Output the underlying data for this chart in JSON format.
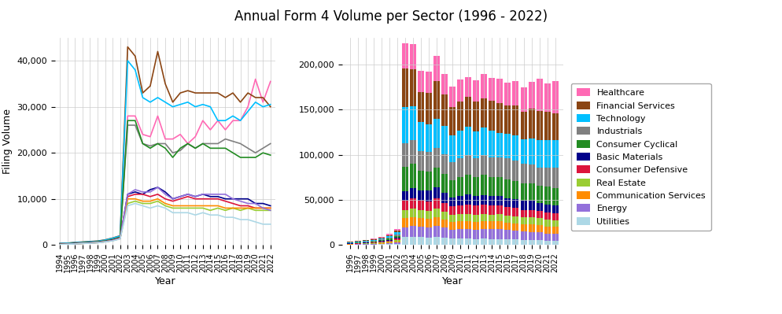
{
  "title": "Annual Form 4 Volume per Sector (1996 - 2022)",
  "sectors_bottom_to_top": [
    "Utilities",
    "Energy",
    "Communication Services",
    "Real Estate",
    "Consumer Defensive",
    "Basic Materials",
    "Consumer Cyclical",
    "Industrials",
    "Technology",
    "Financial Services",
    "Healthcare"
  ],
  "sectors_legend": [
    "Healthcare",
    "Financial Services",
    "Technology",
    "Industrials",
    "Consumer Cyclical",
    "Basic Materials",
    "Consumer Defensive",
    "Real Estate",
    "Communication Services",
    "Energy",
    "Utilities"
  ],
  "colors_map": {
    "Healthcare": "#FF69B4",
    "Financial Services": "#8B4513",
    "Technology": "#00BFFF",
    "Industrials": "#808080",
    "Consumer Cyclical": "#228B22",
    "Basic Materials": "#00008B",
    "Consumer Defensive": "#DC143C",
    "Real Estate": "#9ACD32",
    "Communication Services": "#FF8C00",
    "Energy": "#9370DB",
    "Utilities": "#ADD8E6"
  },
  "years_line": [
    1994,
    1995,
    1996,
    1997,
    1998,
    1999,
    2000,
    2001,
    2002,
    2003,
    2004,
    2005,
    2006,
    2007,
    2008,
    2009,
    2010,
    2011,
    2012,
    2013,
    2014,
    2015,
    2016,
    2017,
    2018,
    2019,
    2020,
    2021,
    2022
  ],
  "years_bar": [
    1996,
    1997,
    1998,
    1999,
    2000,
    2001,
    2002,
    2003,
    2004,
    2005,
    2006,
    2007,
    2008,
    2009,
    2010,
    2011,
    2012,
    2013,
    2014,
    2015,
    2016,
    2017,
    2018,
    2019,
    2020,
    2021,
    2022
  ],
  "line_data": {
    "Healthcare": [
      300,
      350,
      450,
      550,
      650,
      750,
      900,
      1300,
      1800,
      28000,
      28000,
      24000,
      23500,
      28000,
      23000,
      23000,
      24000,
      22000,
      23500,
      27000,
      25000,
      27000,
      25000,
      27000,
      27000,
      30000,
      36000,
      31000,
      35500
    ],
    "Financial Services": [
      350,
      400,
      550,
      650,
      750,
      850,
      1100,
      1500,
      2000,
      43000,
      41000,
      33000,
      34500,
      42000,
      35000,
      31000,
      33000,
      33500,
      33000,
      33000,
      33000,
      33000,
      32000,
      33000,
      31000,
      33000,
      32000,
      32000,
      30000
    ],
    "Technology": [
      320,
      380,
      500,
      600,
      700,
      800,
      1050,
      1450,
      1950,
      40000,
      38000,
      32000,
      31000,
      32000,
      31000,
      30000,
      30500,
      31000,
      30000,
      30500,
      30000,
      27000,
      27000,
      28000,
      27000,
      29000,
      31000,
      30000,
      30500
    ],
    "Industrials": [
      220,
      280,
      380,
      480,
      580,
      680,
      880,
      1200,
      1700,
      26000,
      26000,
      22000,
      21500,
      22000,
      22000,
      20000,
      20500,
      22000,
      21000,
      22000,
      22000,
      22000,
      23000,
      22500,
      22000,
      21000,
      20000,
      21000,
      22000
    ],
    "Consumer Cyclical": [
      180,
      250,
      350,
      450,
      550,
      650,
      850,
      1150,
      1650,
      27000,
      27000,
      22000,
      21000,
      22000,
      21000,
      19000,
      21000,
      22000,
      21000,
      22000,
      21000,
      21000,
      21000,
      20000,
      19000,
      19000,
      19000,
      20000,
      19500
    ],
    "Basic Materials": [
      130,
      200,
      300,
      380,
      470,
      570,
      750,
      1050,
      1500,
      11000,
      11500,
      11000,
      12000,
      12500,
      11500,
      10000,
      10500,
      11000,
      10500,
      11000,
      10500,
      10500,
      10000,
      10000,
      10000,
      10000,
      9000,
      9000,
      8500
    ],
    "Consumer Defensive": [
      110,
      180,
      270,
      350,
      440,
      540,
      720,
      1000,
      1450,
      10500,
      11000,
      11000,
      10500,
      11000,
      10000,
      9500,
      10000,
      10500,
      10000,
      10000,
      10000,
      10000,
      9500,
      9000,
      8500,
      8500,
      8000,
      8000,
      8000
    ],
    "Real Estate": [
      90,
      160,
      250,
      330,
      410,
      510,
      700,
      950,
      1400,
      9000,
      9500,
      9000,
      9000,
      9500,
      8500,
      8000,
      8000,
      8000,
      8000,
      8000,
      7500,
      8000,
      7500,
      8000,
      7500,
      8000,
      7500,
      7500,
      7500
    ],
    "Communication Services": [
      90,
      160,
      250,
      330,
      410,
      510,
      700,
      950,
      1400,
      10000,
      10000,
      9500,
      9500,
      10000,
      9000,
      8500,
      8500,
      8500,
      8500,
      8500,
      8500,
      8500,
      8000,
      8000,
      8000,
      8000,
      8000,
      8000,
      8000
    ],
    "Energy": [
      90,
      160,
      250,
      330,
      410,
      510,
      700,
      950,
      1400,
      11000,
      12000,
      11500,
      11500,
      12500,
      11000,
      10000,
      10500,
      11000,
      10500,
      11000,
      11000,
      11000,
      11000,
      10000,
      9500,
      9000,
      9000,
      8000,
      7500
    ],
    "Utilities": [
      70,
      140,
      220,
      300,
      380,
      470,
      650,
      880,
      1300,
      8500,
      9000,
      8500,
      8000,
      8500,
      8000,
      7000,
      7000,
      7000,
      6500,
      7000,
      6500,
      6500,
      6000,
      6000,
      5500,
      5500,
      5000,
      4500,
      4500
    ]
  },
  "bar_data": {
    "Healthcare": [
      450,
      550,
      650,
      750,
      900,
      1300,
      1800,
      28000,
      28000,
      24000,
      23500,
      28000,
      23000,
      23000,
      24000,
      22000,
      23500,
      27000,
      25000,
      27000,
      25000,
      27000,
      27000,
      30000,
      36000,
      31000,
      35500
    ],
    "Financial Services": [
      550,
      650,
      750,
      850,
      1100,
      1500,
      2000,
      43000,
      41000,
      33000,
      34500,
      42000,
      35000,
      31000,
      33000,
      33500,
      33000,
      33000,
      33000,
      33000,
      32000,
      33000,
      31000,
      33000,
      32000,
      32000,
      30000
    ],
    "Technology": [
      500,
      600,
      700,
      800,
      1050,
      1450,
      1950,
      40000,
      38000,
      32000,
      31000,
      32000,
      31000,
      30000,
      30500,
      31000,
      30000,
      30500,
      30000,
      27000,
      27000,
      28000,
      27000,
      29000,
      31000,
      30000,
      30500
    ],
    "Industrials": [
      380,
      480,
      580,
      680,
      880,
      1200,
      1700,
      26000,
      26000,
      22000,
      21500,
      22000,
      22000,
      20000,
      20500,
      22000,
      21000,
      22000,
      22000,
      22000,
      23000,
      22500,
      22000,
      21000,
      20000,
      21000,
      22000
    ],
    "Consumer Cyclical": [
      350,
      450,
      550,
      650,
      850,
      1150,
      1650,
      27000,
      27000,
      22000,
      21000,
      22000,
      21000,
      19000,
      21000,
      22000,
      21000,
      22000,
      21000,
      21000,
      21000,
      20000,
      19000,
      19000,
      19000,
      20000,
      19500
    ],
    "Basic Materials": [
      300,
      380,
      470,
      570,
      750,
      1050,
      1500,
      11000,
      11500,
      11000,
      12000,
      12500,
      11500,
      10000,
      10500,
      11000,
      10500,
      11000,
      10500,
      10500,
      10000,
      10000,
      10000,
      10000,
      9000,
      9000,
      8500
    ],
    "Consumer Defensive": [
      270,
      350,
      440,
      540,
      720,
      1000,
      1450,
      10500,
      11000,
      11000,
      10500,
      11000,
      10000,
      9500,
      10000,
      10500,
      10000,
      10000,
      10000,
      10000,
      9500,
      9000,
      8500,
      8500,
      8000,
      8000,
      8000
    ],
    "Real Estate": [
      250,
      330,
      410,
      510,
      700,
      950,
      1400,
      9000,
      9500,
      9000,
      9000,
      9500,
      8500,
      8000,
      8000,
      8000,
      8000,
      8000,
      7500,
      8000,
      7500,
      8000,
      7500,
      8000,
      7500,
      7500,
      7500
    ],
    "Communication Services": [
      250,
      330,
      410,
      510,
      700,
      950,
      1400,
      10000,
      10000,
      9500,
      9500,
      10000,
      9000,
      8500,
      8500,
      8500,
      8500,
      8500,
      8500,
      8500,
      8000,
      8000,
      8000,
      8000,
      8000,
      8000,
      8000
    ],
    "Energy": [
      250,
      330,
      410,
      510,
      700,
      950,
      1400,
      11000,
      12000,
      11500,
      11500,
      12500,
      11000,
      10000,
      10500,
      11000,
      10500,
      11000,
      11000,
      11000,
      11000,
      10000,
      9500,
      9000,
      9000,
      8000,
      7500
    ],
    "Utilities": [
      220,
      300,
      380,
      470,
      650,
      880,
      1300,
      8500,
      9000,
      8500,
      8000,
      8500,
      8000,
      7000,
      7000,
      7000,
      6500,
      7000,
      6500,
      6500,
      6000,
      6000,
      5500,
      5500,
      5000,
      4500,
      4500
    ]
  },
  "ylabel_left": "Filing Volume",
  "xlabel": "Year",
  "ylim_left": [
    0,
    45000
  ],
  "ylim_right": [
    0,
    230000
  ],
  "yticks_left": [
    0,
    10000,
    20000,
    30000,
    40000
  ],
  "yticks_right": [
    0,
    50000,
    100000,
    150000,
    200000
  ],
  "background_color": "#ffffff",
  "grid_color": "#cccccc"
}
